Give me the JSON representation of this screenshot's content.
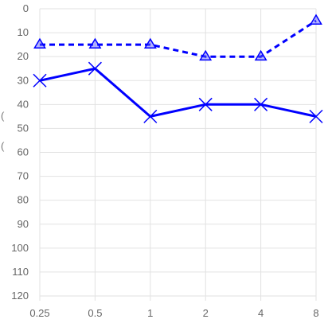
{
  "chart_data": {
    "type": "line",
    "x": [
      "0.25",
      "0.5",
      "1",
      "2",
      "4",
      "8"
    ],
    "y_ticks": [
      0,
      10,
      20,
      30,
      40,
      50,
      60,
      70,
      80,
      90,
      100,
      110,
      120
    ],
    "ylim": [
      0,
      120
    ],
    "y_inverted": true,
    "grid": true,
    "left_edge_characters": [
      "(",
      "("
    ],
    "series": [
      {
        "values": [
          15,
          15,
          15,
          20,
          20,
          5
        ],
        "color": "#0000ff",
        "line_style": "dashed",
        "marker": "triangle"
      },
      {
        "values": [
          30,
          25,
          45,
          40,
          40,
          45
        ],
        "color": "#0000ff",
        "line_style": "solid",
        "marker": "x"
      }
    ]
  }
}
